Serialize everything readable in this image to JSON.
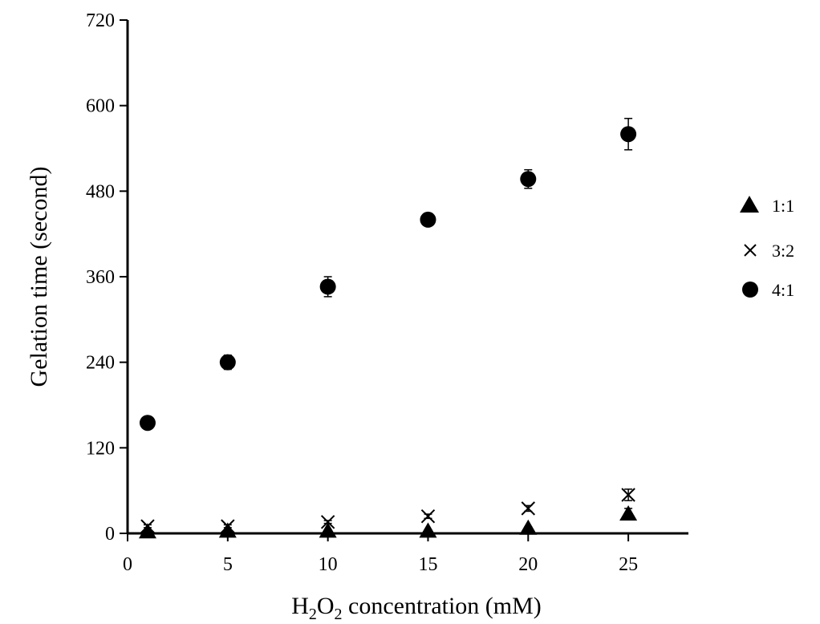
{
  "chart_data": {
    "type": "scatter",
    "xlabel": {
      "main": "H",
      "sub1": "2",
      "mid": "O",
      "sub2": "2",
      "rest": " concentration (mM)"
    },
    "ylabel": "Gelation time (second)",
    "xlim": [
      0,
      28
    ],
    "ylim": [
      0,
      720
    ],
    "xticks": [
      0,
      5,
      10,
      15,
      20,
      25
    ],
    "yticks": [
      0,
      120,
      240,
      360,
      480,
      600,
      720
    ],
    "grid": false,
    "legend_position": "right",
    "x": [
      1,
      5,
      10,
      15,
      20,
      25
    ],
    "series": [
      {
        "name": "1:1",
        "marker": "triangle",
        "color": "#000000",
        "values": [
          2,
          3,
          3,
          3,
          7,
          27
        ],
        "errors": [
          1,
          1,
          1,
          1,
          2,
          8
        ]
      },
      {
        "name": "3:2",
        "marker": "cross",
        "color": "#000000",
        "values": [
          10,
          10,
          16,
          24,
          35,
          54
        ],
        "errors": [
          2,
          2,
          2,
          3,
          4,
          8
        ]
      },
      {
        "name": "4:1",
        "marker": "circle",
        "color": "#000000",
        "values": [
          155,
          240,
          346,
          440,
          497,
          560
        ],
        "errors": [
          5,
          10,
          14,
          7,
          13,
          22
        ]
      }
    ]
  }
}
